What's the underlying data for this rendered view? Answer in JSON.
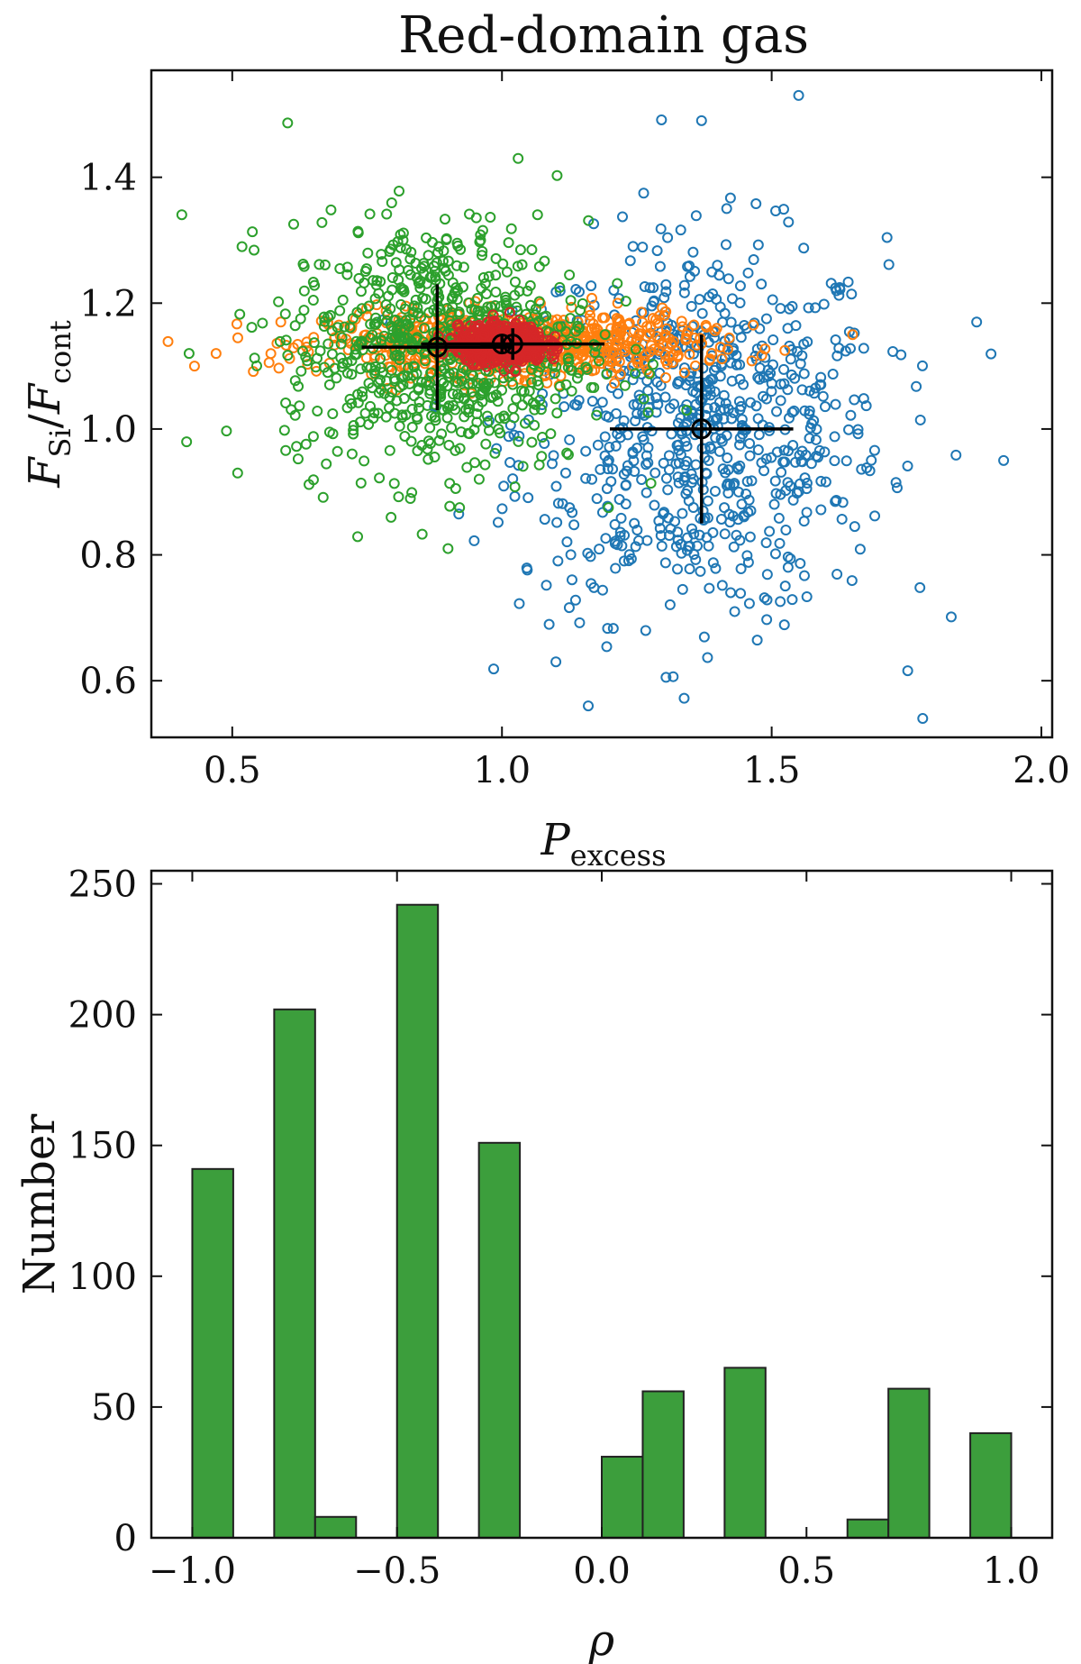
{
  "figure_title": "Red-domain gas",
  "colors": {
    "blue": "#1f77b4",
    "orange": "#ff7f0e",
    "green": "#2ca02c",
    "red": "#d62728",
    "hist_fill": "#3c9e3c",
    "hist_edge": "#222222"
  },
  "chart_data": [
    {
      "type": "scatter",
      "title": "Red-domain gas",
      "xlabel_main": "P",
      "xlabel_sub": "excess",
      "ylabel_parts": [
        "F",
        "Si",
        "/",
        "F",
        "cont"
      ],
      "xlim": [
        0.35,
        2.02
      ],
      "ylim": [
        0.51,
        1.57
      ],
      "xticks": [
        0.5,
        1.0,
        1.5,
        2.0
      ],
      "xtick_labels": [
        "0.5",
        "1.0",
        "1.5",
        "2.0"
      ],
      "yticks": [
        0.6,
        0.8,
        1.0,
        1.2,
        1.4
      ],
      "ytick_labels": [
        "0.6",
        "0.8",
        "1.0",
        "1.2",
        "1.4"
      ],
      "series": [
        {
          "name": "blue",
          "color": "#1f77b4",
          "marker": "open-circle",
          "count": 1000,
          "center": [
            1.37,
            1.0
          ],
          "spread": [
            0.17,
            0.15
          ],
          "sample_points": [
            [
              1.55,
              1.53
            ],
            [
              1.37,
              1.49
            ],
            [
              1.93,
              0.95
            ],
            [
              1.78,
              0.54
            ],
            [
              1.16,
              0.56
            ],
            [
              1.88,
              1.17
            ],
            [
              1.1,
              0.63
            ]
          ]
        },
        {
          "name": "orange",
          "color": "#ff7f0e",
          "marker": "open-circle",
          "count": 1000,
          "center": [
            1.02,
            1.135
          ],
          "spread": [
            0.17,
            0.025
          ],
          "sample_points": [
            [
              0.43,
              1.1
            ],
            [
              0.47,
              1.12
            ],
            [
              1.65,
              1.15
            ],
            [
              0.59,
              1.17
            ]
          ]
        },
        {
          "name": "green",
          "color": "#2ca02c",
          "marker": "open-circle",
          "count": 1000,
          "center": [
            0.88,
            1.13
          ],
          "spread": [
            0.14,
            0.1
          ],
          "sample_points": [
            [
              0.42,
              1.12
            ],
            [
              1.03,
              1.43
            ],
            [
              0.51,
              0.93
            ],
            [
              0.9,
              0.81
            ]
          ]
        },
        {
          "name": "red",
          "color": "#d62728",
          "marker": "open-circle",
          "count": 1000,
          "center": [
            1.0,
            1.135
          ],
          "spread": [
            0.04,
            0.014
          ],
          "sample_points": []
        }
      ],
      "error_points": [
        {
          "x": 1.37,
          "y": 1.0,
          "xerr": 0.17,
          "yerr": 0.15
        },
        {
          "x": 0.88,
          "y": 1.13,
          "xerr": 0.14,
          "yerr": 0.1
        },
        {
          "x": 1.02,
          "y": 1.135,
          "xerr": 0.17,
          "yerr": 0.025
        },
        {
          "x": 1.0,
          "y": 1.135,
          "xerr": 0.04,
          "yerr": 0.014
        }
      ]
    },
    {
      "type": "bar",
      "xlabel": "ρ",
      "ylabel": "Number",
      "xlim": [
        -1.1,
        1.1
      ],
      "ylim": [
        0,
        255
      ],
      "xticks": [
        -1.0,
        -0.5,
        0.0,
        0.5,
        1.0
      ],
      "xtick_labels": [
        "−1.0",
        "−0.5",
        "0.0",
        "0.5",
        "1.0"
      ],
      "yticks": [
        0,
        50,
        100,
        150,
        200,
        250
      ],
      "ytick_labels": [
        "0",
        "50",
        "100",
        "150",
        "200",
        "250"
      ],
      "bin_width": 0.1,
      "bins": [
        {
          "left": -1.0,
          "value": 141
        },
        {
          "left": -0.8,
          "value": 202
        },
        {
          "left": -0.7,
          "value": 8
        },
        {
          "left": -0.5,
          "value": 242
        },
        {
          "left": -0.3,
          "value": 151
        },
        {
          "left": 0.0,
          "value": 31
        },
        {
          "left": 0.1,
          "value": 56
        },
        {
          "left": 0.3,
          "value": 65
        },
        {
          "left": 0.6,
          "value": 7
        },
        {
          "left": 0.7,
          "value": 57
        },
        {
          "left": 0.9,
          "value": 40
        }
      ]
    }
  ]
}
